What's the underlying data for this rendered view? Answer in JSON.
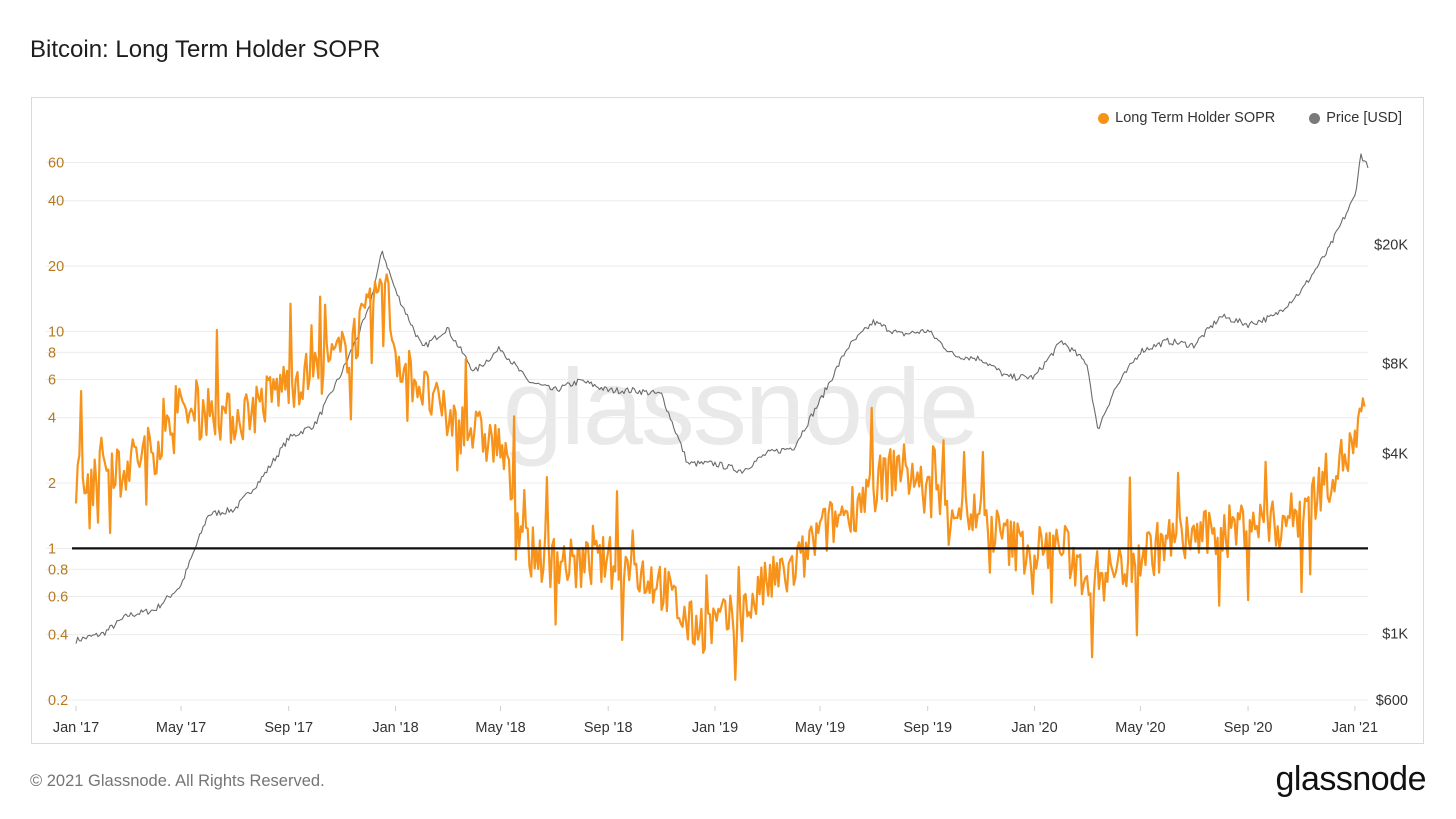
{
  "page": {
    "title": "Bitcoin: Long Term Holder SOPR",
    "footer": "© 2021 Glassnode. All Rights Reserved.",
    "brand": "glassnode",
    "watermark": "glassnode"
  },
  "colors": {
    "sopr": "#f7931a",
    "price": "#6b6b6b",
    "baseline": "#111111",
    "left_axis_text": "#b7791f",
    "grid": "#ececec"
  },
  "chart_data": {
    "type": "line",
    "title": "Bitcoin: Long Term Holder SOPR",
    "legend": {
      "position": "top-right",
      "entries": [
        "Long Term Holder SOPR",
        "Price [USD]"
      ]
    },
    "grid": true,
    "x_ticks": [
      "Jan '17",
      "May '17",
      "Sep '17",
      "Jan '18",
      "May '18",
      "Sep '18",
      "Jan '19",
      "May '19",
      "Sep '19",
      "Jan '20",
      "May '20",
      "Sep '20",
      "Jan '21"
    ],
    "x_range": [
      "2017-01-01",
      "2021-01-16"
    ],
    "y_left": {
      "label": "",
      "scale": "log",
      "ticks": [
        "0.2",
        "0.4",
        "0.6",
        "0.8",
        "1",
        "2",
        "4",
        "6",
        "8",
        "10",
        "20",
        "40",
        "60"
      ],
      "range": [
        0.2,
        70
      ]
    },
    "y_right": {
      "label": "",
      "scale": "log",
      "ticks": [
        "$600",
        "$1K",
        "$4K",
        "$8K",
        "$20K"
      ],
      "range": [
        600,
        42000
      ]
    },
    "reference_line": {
      "axis": "left",
      "value": 1
    },
    "series": [
      {
        "name": "Long Term Holder SOPR",
        "axis": "left",
        "x": [
          "2017-01-01",
          "2017-02-01",
          "2017-03-01",
          "2017-04-01",
          "2017-05-01",
          "2017-06-01",
          "2017-07-01",
          "2017-08-01",
          "2017-09-01",
          "2017-10-01",
          "2017-11-01",
          "2017-12-01",
          "2017-12-20",
          "2018-01-01",
          "2018-02-01",
          "2018-03-01",
          "2018-04-01",
          "2018-05-01",
          "2018-06-01",
          "2018-07-01",
          "2018-08-01",
          "2018-09-01",
          "2018-10-01",
          "2018-11-01",
          "2018-12-01",
          "2019-01-01",
          "2019-02-01",
          "2019-03-01",
          "2019-04-01",
          "2019-05-01",
          "2019-06-01",
          "2019-07-01",
          "2019-08-01",
          "2019-09-01",
          "2019-10-01",
          "2019-11-01",
          "2019-12-01",
          "2020-01-01",
          "2020-02-01",
          "2020-03-01",
          "2020-04-01",
          "2020-05-01",
          "2020-06-01",
          "2020-07-01",
          "2020-08-01",
          "2020-09-01",
          "2020-10-01",
          "2020-11-01",
          "2020-12-01",
          "2021-01-01",
          "2021-01-12"
        ],
        "y": [
          2.2,
          2.6,
          2.5,
          3.0,
          4.0,
          4.5,
          4.0,
          4.8,
          6.0,
          6.5,
          8.0,
          12.0,
          18.0,
          8.0,
          5.5,
          4.0,
          3.5,
          3.0,
          1.0,
          0.9,
          0.85,
          0.9,
          0.8,
          0.7,
          0.45,
          0.45,
          0.5,
          0.7,
          0.8,
          1.2,
          1.5,
          2.0,
          2.5,
          1.8,
          1.6,
          1.4,
          1.1,
          1.0,
          1.05,
          0.75,
          0.8,
          0.95,
          1.1,
          1.15,
          1.2,
          1.35,
          1.3,
          1.5,
          2.2,
          3.0,
          4.5
        ]
      },
      {
        "name": "Price [USD]",
        "axis": "right",
        "x": [
          "2017-01-01",
          "2017-02-01",
          "2017-03-01",
          "2017-04-01",
          "2017-05-01",
          "2017-06-01",
          "2017-07-01",
          "2017-08-01",
          "2017-09-01",
          "2017-10-01",
          "2017-11-01",
          "2017-12-01",
          "2017-12-17",
          "2018-01-01",
          "2018-02-01",
          "2018-03-01",
          "2018-04-01",
          "2018-05-01",
          "2018-06-01",
          "2018-07-01",
          "2018-08-01",
          "2018-09-01",
          "2018-10-01",
          "2018-11-01",
          "2018-12-01",
          "2019-01-01",
          "2019-02-01",
          "2019-03-01",
          "2019-04-01",
          "2019-05-01",
          "2019-06-01",
          "2019-07-01",
          "2019-08-01",
          "2019-09-01",
          "2019-10-01",
          "2019-11-01",
          "2019-12-01",
          "2020-01-01",
          "2020-02-01",
          "2020-03-01",
          "2020-03-13",
          "2020-04-01",
          "2020-05-01",
          "2020-06-01",
          "2020-07-01",
          "2020-08-01",
          "2020-09-01",
          "2020-10-01",
          "2020-11-01",
          "2020-12-01",
          "2021-01-01",
          "2021-01-08",
          "2021-01-16"
        ],
        "y": [
          950,
          1000,
          1150,
          1200,
          1450,
          2500,
          2600,
          3300,
          4500,
          5000,
          7500,
          12000,
          19000,
          14000,
          9000,
          10500,
          7500,
          9000,
          7000,
          6500,
          7000,
          6500,
          6500,
          6300,
          3700,
          3700,
          3500,
          4000,
          4200,
          6000,
          9000,
          11000,
          10000,
          10300,
          8500,
          8300,
          7200,
          7200,
          9500,
          8000,
          4800,
          6500,
          8800,
          9500,
          9200,
          11500,
          10800,
          11500,
          14000,
          19000,
          29000,
          40000,
          36000
        ]
      }
    ]
  }
}
